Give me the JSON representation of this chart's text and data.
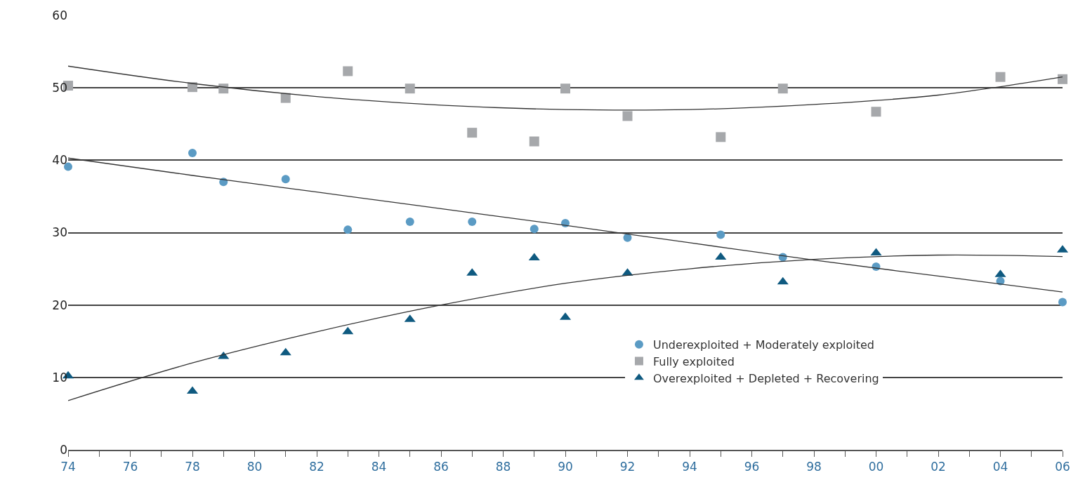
{
  "chart_data": {
    "type": "scatter",
    "xlim": [
      1974,
      2006
    ],
    "xticks": [
      {
        "value": 1974,
        "label": "74"
      },
      {
        "value": 1975,
        "label": null
      },
      {
        "value": 1976,
        "label": "76"
      },
      {
        "value": 1977,
        "label": null
      },
      {
        "value": 1978,
        "label": "78"
      },
      {
        "value": 1979,
        "label": null
      },
      {
        "value": 1980,
        "label": "80"
      },
      {
        "value": 1981,
        "label": null
      },
      {
        "value": 1982,
        "label": "82"
      },
      {
        "value": 1983,
        "label": null
      },
      {
        "value": 1984,
        "label": "84"
      },
      {
        "value": 1985,
        "label": null
      },
      {
        "value": 1986,
        "label": "86"
      },
      {
        "value": 1987,
        "label": null
      },
      {
        "value": 1988,
        "label": "88"
      },
      {
        "value": 1989,
        "label": null
      },
      {
        "value": 1990,
        "label": "90"
      },
      {
        "value": 1991,
        "label": null
      },
      {
        "value": 1992,
        "label": "92"
      },
      {
        "value": 1993,
        "label": null
      },
      {
        "value": 1994,
        "label": "94"
      },
      {
        "value": 1995,
        "label": null
      },
      {
        "value": 1996,
        "label": "96"
      },
      {
        "value": 1997,
        "label": null
      },
      {
        "value": 1998,
        "label": "98"
      },
      {
        "value": 1999,
        "label": null
      },
      {
        "value": 2000,
        "label": "00"
      },
      {
        "value": 2001,
        "label": null
      },
      {
        "value": 2002,
        "label": "02"
      },
      {
        "value": 2003,
        "label": null
      },
      {
        "value": 2004,
        "label": "04"
      },
      {
        "value": 2005,
        "label": null
      },
      {
        "value": 2006,
        "label": "06"
      }
    ],
    "ylim": [
      0,
      60
    ],
    "yticks": [
      0,
      10,
      20,
      30,
      40,
      50,
      60
    ],
    "grid": "y",
    "legend": "bottom right",
    "series": [
      {
        "name": "Underexploited + Moderately exploited",
        "color": "#5b9bc4",
        "marker": "circle",
        "x": [
          1974,
          1978,
          1979,
          1981,
          1983,
          1985,
          1987,
          1989,
          1990,
          1992,
          1995,
          1997,
          2000,
          2004,
          2006
        ],
        "values": [
          39.1,
          41.0,
          37.0,
          37.4,
          30.4,
          31.5,
          31.5,
          30.5,
          31.3,
          29.3,
          29.7,
          26.6,
          25.3,
          23.3,
          20.4
        ]
      },
      {
        "name": "Fully exploited",
        "color": "#a6a8ab",
        "marker": "square",
        "x": [
          1974,
          1978,
          1979,
          1981,
          1983,
          1985,
          1987,
          1989,
          1990,
          1992,
          1995,
          1997,
          2000,
          2004,
          2006
        ],
        "values": [
          50.3,
          50.1,
          49.9,
          48.6,
          52.3,
          49.9,
          43.8,
          42.6,
          49.9,
          46.1,
          43.2,
          49.9,
          46.7,
          51.5,
          51.2
        ]
      },
      {
        "name": "Overexploited + Depleted + Recovering",
        "color": "#0f5a80",
        "marker": "triangle",
        "x": [
          1974,
          1978,
          1979,
          1981,
          1983,
          1985,
          1987,
          1989,
          1990,
          1992,
          1995,
          1997,
          2000,
          2004,
          2006
        ],
        "values": [
          10.2,
          8.1,
          12.9,
          13.4,
          16.3,
          18.0,
          24.4,
          26.5,
          18.3,
          24.4,
          26.6,
          23.2,
          27.2,
          24.2,
          27.6
        ]
      },
      {
        "type": "line",
        "color": "#333333",
        "marker": "none",
        "x": [
          1974,
          1978,
          1982,
          1986,
          1990,
          1994,
          1998,
          2002,
          2006
        ],
        "values": [
          40.3,
          37.9,
          35.6,
          33.3,
          31.0,
          28.6,
          26.2,
          24.0,
          21.8
        ]
      },
      {
        "type": "line",
        "color": "#333333",
        "marker": "none",
        "x": [
          1974,
          1978,
          1982,
          1986,
          1990,
          1994,
          1998,
          2002,
          2006
        ],
        "values": [
          53.0,
          50.6,
          48.8,
          47.6,
          47.0,
          47.0,
          47.7,
          49.0,
          51.5
        ]
      },
      {
        "type": "line",
        "color": "#333333",
        "marker": "none",
        "x": [
          1974,
          1978,
          1982,
          1986,
          1990,
          1994,
          1998,
          2002,
          2006
        ],
        "values": [
          6.8,
          12.0,
          16.3,
          20.0,
          23.0,
          25.0,
          26.3,
          26.9,
          26.7
        ]
      }
    ]
  }
}
